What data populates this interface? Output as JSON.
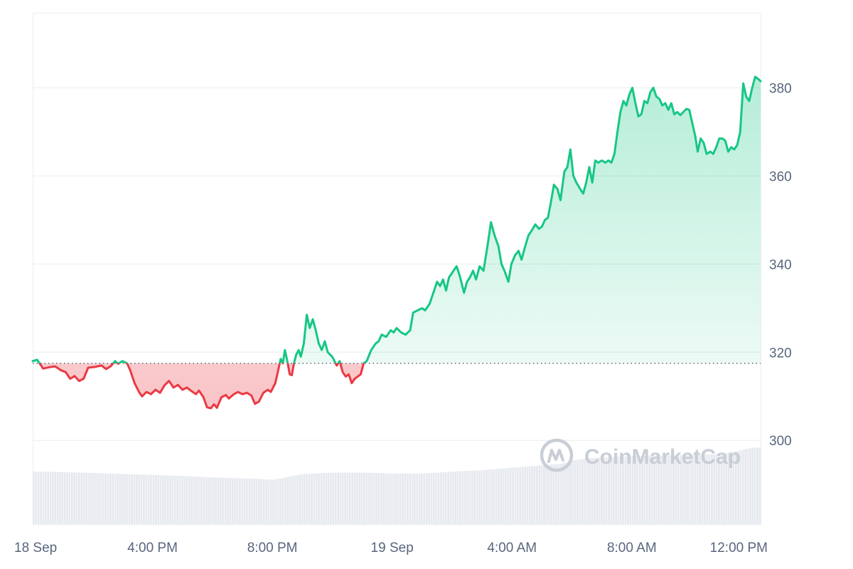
{
  "watermark": {
    "brand": "CoinMarketCap",
    "icon": "coinmarketcap-logo-icon"
  },
  "colors": {
    "up_line": "#16c784",
    "up_fill": "#16c784",
    "down_line": "#ea3943",
    "down_fill": "#ea3943",
    "grid": "#eff2f5",
    "baseline": "#58667e",
    "volume": "#e6e9ee",
    "tick_text": "#58667e"
  },
  "chart_data": {
    "type": "area",
    "baseline_value": 317.5,
    "x_axis_labels": [
      "18 Sep",
      "4:00 PM",
      "8:00 PM",
      "19 Sep",
      "4:00 AM",
      "8:00 AM",
      "12:00 PM"
    ],
    "x_label_hours": [
      0,
      4,
      8,
      12,
      16,
      20,
      24
    ],
    "x_range_hours": [
      0,
      24.3
    ],
    "ylim": [
      281,
      397
    ],
    "y_ticks": [
      300,
      320,
      340,
      360,
      380
    ],
    "grid": true,
    "price": [
      [
        0.0,
        318.0
      ],
      [
        0.15,
        318.3
      ],
      [
        0.35,
        316.3
      ],
      [
        0.55,
        316.6
      ],
      [
        0.75,
        316.8
      ],
      [
        0.95,
        315.9
      ],
      [
        1.1,
        315.5
      ],
      [
        1.25,
        314.0
      ],
      [
        1.4,
        314.6
      ],
      [
        1.55,
        313.5
      ],
      [
        1.7,
        314.0
      ],
      [
        1.85,
        316.5
      ],
      [
        2.1,
        316.7
      ],
      [
        2.3,
        317.0
      ],
      [
        2.45,
        316.2
      ],
      [
        2.6,
        316.8
      ],
      [
        2.75,
        318.0
      ],
      [
        2.85,
        317.4
      ],
      [
        3.0,
        318.0
      ],
      [
        3.15,
        317.5
      ],
      [
        3.25,
        316.0
      ],
      [
        3.4,
        313.0
      ],
      [
        3.55,
        311.0
      ],
      [
        3.65,
        310.0
      ],
      [
        3.8,
        311.0
      ],
      [
        3.95,
        310.5
      ],
      [
        4.1,
        311.5
      ],
      [
        4.25,
        310.8
      ],
      [
        4.4,
        312.5
      ],
      [
        4.55,
        313.5
      ],
      [
        4.7,
        312.0
      ],
      [
        4.85,
        312.6
      ],
      [
        5.0,
        311.5
      ],
      [
        5.15,
        312.0
      ],
      [
        5.3,
        311.2
      ],
      [
        5.45,
        310.5
      ],
      [
        5.55,
        311.3
      ],
      [
        5.7,
        309.8
      ],
      [
        5.82,
        307.5
      ],
      [
        5.95,
        307.3
      ],
      [
        6.05,
        308.2
      ],
      [
        6.15,
        307.4
      ],
      [
        6.3,
        309.8
      ],
      [
        6.45,
        310.3
      ],
      [
        6.55,
        309.5
      ],
      [
        6.7,
        310.4
      ],
      [
        6.85,
        311.0
      ],
      [
        7.0,
        310.5
      ],
      [
        7.15,
        310.8
      ],
      [
        7.3,
        310.2
      ],
      [
        7.42,
        308.3
      ],
      [
        7.55,
        308.8
      ],
      [
        7.7,
        310.8
      ],
      [
        7.85,
        311.5
      ],
      [
        7.95,
        311.0
      ],
      [
        8.1,
        313.0
      ],
      [
        8.2,
        316.0
      ],
      [
        8.28,
        318.5
      ],
      [
        8.35,
        317.5
      ],
      [
        8.42,
        320.5
      ],
      [
        8.5,
        318.0
      ],
      [
        8.58,
        315.0
      ],
      [
        8.65,
        314.8
      ],
      [
        8.72,
        317.5
      ],
      [
        8.8,
        319.5
      ],
      [
        8.88,
        320.5
      ],
      [
        8.95,
        319.0
      ],
      [
        9.05,
        322.0
      ],
      [
        9.15,
        328.5
      ],
      [
        9.25,
        325.5
      ],
      [
        9.35,
        327.5
      ],
      [
        9.45,
        325.0
      ],
      [
        9.55,
        322.0
      ],
      [
        9.65,
        320.5
      ],
      [
        9.75,
        322.5
      ],
      [
        9.85,
        320.0
      ],
      [
        10.0,
        319.0
      ],
      [
        10.15,
        317.0
      ],
      [
        10.25,
        318.0
      ],
      [
        10.35,
        315.5
      ],
      [
        10.45,
        314.5
      ],
      [
        10.55,
        315.0
      ],
      [
        10.65,
        313.0
      ],
      [
        10.75,
        314.0
      ],
      [
        10.85,
        314.5
      ],
      [
        10.95,
        315.0
      ],
      [
        11.05,
        317.5
      ],
      [
        11.15,
        318.0
      ],
      [
        11.3,
        320.5
      ],
      [
        11.45,
        322.0
      ],
      [
        11.55,
        322.5
      ],
      [
        11.65,
        324.0
      ],
      [
        11.8,
        323.5
      ],
      [
        11.95,
        325.0
      ],
      [
        12.05,
        324.5
      ],
      [
        12.15,
        325.5
      ],
      [
        12.3,
        324.5
      ],
      [
        12.45,
        324.0
      ],
      [
        12.6,
        325.0
      ],
      [
        12.7,
        329.0
      ],
      [
        12.85,
        329.5
      ],
      [
        13.0,
        330.0
      ],
      [
        13.1,
        329.5
      ],
      [
        13.25,
        331.0
      ],
      [
        13.35,
        333.0
      ],
      [
        13.5,
        336.0
      ],
      [
        13.6,
        335.0
      ],
      [
        13.7,
        336.5
      ],
      [
        13.8,
        334.0
      ],
      [
        13.9,
        337.0
      ],
      [
        14.0,
        338.0
      ],
      [
        14.15,
        339.5
      ],
      [
        14.25,
        337.5
      ],
      [
        14.4,
        333.5
      ],
      [
        14.5,
        336.0
      ],
      [
        14.6,
        337.0
      ],
      [
        14.7,
        338.5
      ],
      [
        14.8,
        336.5
      ],
      [
        14.92,
        339.5
      ],
      [
        15.05,
        338.5
      ],
      [
        15.18,
        344.0
      ],
      [
        15.3,
        349.5
      ],
      [
        15.42,
        346.5
      ],
      [
        15.55,
        344.0
      ],
      [
        15.65,
        340.0
      ],
      [
        15.75,
        338.5
      ],
      [
        15.88,
        336.0
      ],
      [
        15.98,
        340.0
      ],
      [
        16.1,
        342.0
      ],
      [
        16.22,
        343.0
      ],
      [
        16.32,
        341.0
      ],
      [
        16.42,
        343.5
      ],
      [
        16.55,
        346.5
      ],
      [
        16.65,
        347.5
      ],
      [
        16.78,
        349.0
      ],
      [
        16.9,
        348.0
      ],
      [
        17.0,
        348.5
      ],
      [
        17.1,
        350.0
      ],
      [
        17.2,
        350.5
      ],
      [
        17.3,
        354.0
      ],
      [
        17.4,
        358.0
      ],
      [
        17.52,
        357.0
      ],
      [
        17.62,
        354.5
      ],
      [
        17.75,
        361.0
      ],
      [
        17.85,
        362.0
      ],
      [
        17.95,
        366.0
      ],
      [
        18.05,
        360.0
      ],
      [
        18.15,
        358.5
      ],
      [
        18.28,
        357.0
      ],
      [
        18.38,
        356.0
      ],
      [
        18.48,
        358.5
      ],
      [
        18.58,
        362.0
      ],
      [
        18.68,
        358.5
      ],
      [
        18.78,
        363.5
      ],
      [
        18.88,
        363.0
      ],
      [
        19.0,
        363.5
      ],
      [
        19.12,
        363.0
      ],
      [
        19.22,
        363.5
      ],
      [
        19.32,
        363.0
      ],
      [
        19.42,
        365.0
      ],
      [
        19.52,
        370.0
      ],
      [
        19.62,
        374.5
      ],
      [
        19.72,
        377.0
      ],
      [
        19.82,
        376.0
      ],
      [
        19.92,
        378.5
      ],
      [
        20.02,
        380.0
      ],
      [
        20.12,
        376.5
      ],
      [
        20.22,
        373.5
      ],
      [
        20.32,
        374.0
      ],
      [
        20.42,
        377.0
      ],
      [
        20.52,
        376.5
      ],
      [
        20.62,
        379.0
      ],
      [
        20.72,
        380.0
      ],
      [
        20.82,
        378.0
      ],
      [
        20.92,
        377.5
      ],
      [
        21.02,
        376.0
      ],
      [
        21.12,
        376.5
      ],
      [
        21.22,
        375.0
      ],
      [
        21.32,
        376.5
      ],
      [
        21.42,
        374.0
      ],
      [
        21.52,
        374.5
      ],
      [
        21.62,
        373.8
      ],
      [
        21.72,
        374.5
      ],
      [
        21.82,
        375.2
      ],
      [
        21.92,
        375.0
      ],
      [
        22.02,
        372.0
      ],
      [
        22.12,
        369.0
      ],
      [
        22.2,
        365.5
      ],
      [
        22.3,
        368.5
      ],
      [
        22.4,
        367.5
      ],
      [
        22.5,
        365.0
      ],
      [
        22.62,
        365.5
      ],
      [
        22.72,
        365.0
      ],
      [
        22.82,
        366.5
      ],
      [
        22.92,
        368.5
      ],
      [
        23.02,
        368.5
      ],
      [
        23.12,
        368.0
      ],
      [
        23.22,
        365.5
      ],
      [
        23.32,
        366.5
      ],
      [
        23.42,
        366.0
      ],
      [
        23.52,
        367.0
      ],
      [
        23.62,
        370.0
      ],
      [
        23.72,
        381.0
      ],
      [
        23.82,
        378.0
      ],
      [
        23.92,
        377.0
      ],
      [
        24.02,
        380.0
      ],
      [
        24.12,
        382.5
      ],
      [
        24.22,
        382.0
      ],
      [
        24.3,
        381.5
      ]
    ],
    "volume": {
      "ylim": [
        0,
        100
      ],
      "points": [
        [
          0.0,
          54
        ],
        [
          1.0,
          53.5
        ],
        [
          2.0,
          52.5
        ],
        [
          3.0,
          51.5
        ],
        [
          4.0,
          50.5
        ],
        [
          5.0,
          49.5
        ],
        [
          6.0,
          48.0
        ],
        [
          7.0,
          47.0
        ],
        [
          7.5,
          46.5
        ],
        [
          8.0,
          45.5
        ],
        [
          8.4,
          48.0
        ],
        [
          9.0,
          51.5
        ],
        [
          10.0,
          53.0
        ],
        [
          11.0,
          53.0
        ],
        [
          12.0,
          52.0
        ],
        [
          13.0,
          52.0
        ],
        [
          14.0,
          54.0
        ],
        [
          15.0,
          55.5
        ],
        [
          16.0,
          58.0
        ],
        [
          17.0,
          60.5
        ],
        [
          17.6,
          62.0
        ],
        [
          18.0,
          65.5
        ],
        [
          18.5,
          67.5
        ],
        [
          19.0,
          68.5
        ],
        [
          20.0,
          70.0
        ],
        [
          21.0,
          70.5
        ],
        [
          22.0,
          71.0
        ],
        [
          23.0,
          72.0
        ],
        [
          24.0,
          78.5
        ],
        [
          24.3,
          79.0
        ]
      ]
    }
  }
}
